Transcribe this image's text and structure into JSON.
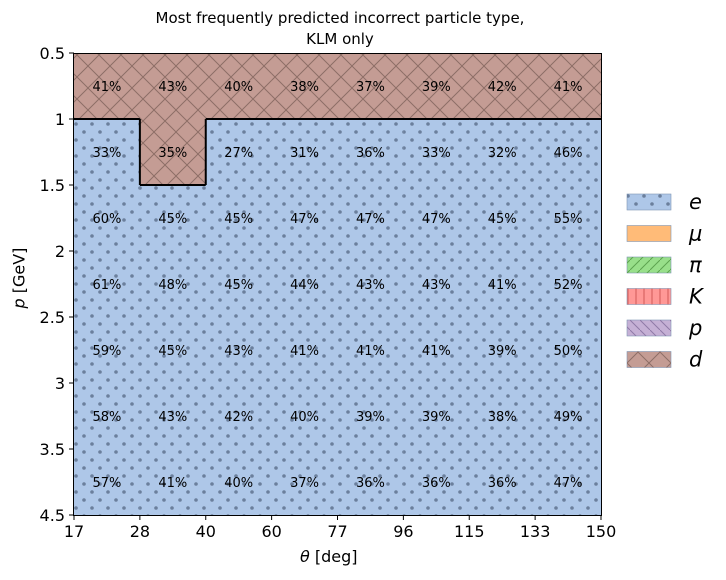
{
  "chart_data": {
    "type": "heatmap",
    "title": [
      "Most frequently predicted incorrect particle type,",
      "KLM only"
    ],
    "xlabel_symbol": "θ",
    "xlabel_unit": "[deg]",
    "ylabel_symbol": "p",
    "ylabel_unit": "[GeV]",
    "x_ticks": [
      "17",
      "28",
      "40",
      "60",
      "77",
      "96",
      "115",
      "133",
      "150"
    ],
    "y_ticks": [
      "0.5",
      "1",
      "1.5",
      "2",
      "2.5",
      "3",
      "3.5",
      "4.5"
    ],
    "legend_position": "right",
    "legend": [
      {
        "label": "e",
        "color": "#aec7e8",
        "hatch": "dots"
      },
      {
        "label": "μ",
        "color": "#ffbb78",
        "hatch": "none"
      },
      {
        "label": "π",
        "color": "#98df8a",
        "hatch": "diagonal"
      },
      {
        "label": "K",
        "color": "#ff9896",
        "hatch": "vertical"
      },
      {
        "label": "p",
        "color": "#c5b0d5",
        "hatch": "backslash"
      },
      {
        "label": "d",
        "color": "#c49c94",
        "hatch": "cross"
      }
    ],
    "cells": [
      [
        "d",
        "d",
        "d",
        "d",
        "d",
        "d",
        "d",
        "d"
      ],
      [
        "e",
        "d",
        "e",
        "e",
        "e",
        "e",
        "e",
        "e"
      ],
      [
        "e",
        "e",
        "e",
        "e",
        "e",
        "e",
        "e",
        "e"
      ],
      [
        "e",
        "e",
        "e",
        "e",
        "e",
        "e",
        "e",
        "e"
      ],
      [
        "e",
        "e",
        "e",
        "e",
        "e",
        "e",
        "e",
        "e"
      ],
      [
        "e",
        "e",
        "e",
        "e",
        "e",
        "e",
        "e",
        "e"
      ],
      [
        "e",
        "e",
        "e",
        "e",
        "e",
        "e",
        "e",
        "e"
      ]
    ],
    "values": [
      [
        "41%",
        "43%",
        "40%",
        "38%",
        "37%",
        "39%",
        "42%",
        "41%"
      ],
      [
        "33%",
        "35%",
        "27%",
        "31%",
        "36%",
        "33%",
        "32%",
        "46%"
      ],
      [
        "60%",
        "45%",
        "45%",
        "47%",
        "47%",
        "47%",
        "45%",
        "55%"
      ],
      [
        "61%",
        "48%",
        "45%",
        "44%",
        "43%",
        "43%",
        "41%",
        "52%"
      ],
      [
        "59%",
        "45%",
        "43%",
        "41%",
        "41%",
        "41%",
        "39%",
        "50%"
      ],
      [
        "58%",
        "43%",
        "42%",
        "40%",
        "39%",
        "39%",
        "38%",
        "49%"
      ],
      [
        "57%",
        "41%",
        "40%",
        "37%",
        "36%",
        "36%",
        "36%",
        "47%"
      ]
    ]
  }
}
